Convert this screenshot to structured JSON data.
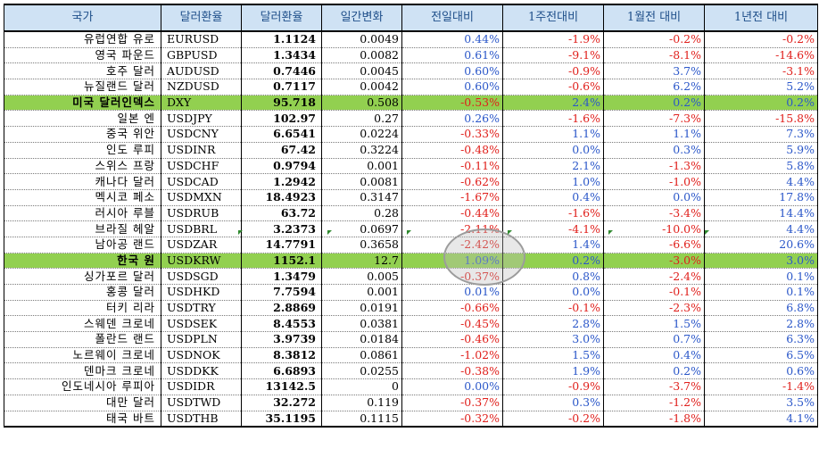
{
  "header": {
    "country": "국가",
    "code": "달러환율",
    "rate": "달러환율",
    "daily_change": "일간변화",
    "vs_prev_day": "전일대비",
    "vs_1w": "1주전대비",
    "vs_1m": "1월전 대비",
    "vs_1y": "1년전 대비"
  },
  "colors": {
    "header_bg": "#cfe2f4",
    "header_text": "#1f4f8a",
    "highlight_row": "#92d050",
    "positive": "#2b57c9",
    "negative": "#e0201c"
  },
  "rows": [
    {
      "name": "유럽연합 유로",
      "code": "EURUSD",
      "rate": "1.1124",
      "chg": "0.0049",
      "d1": "0.44%",
      "w1": "-1.9%",
      "m1": "-0.2%",
      "y1": "-0.2%"
    },
    {
      "name": "영국 파운드",
      "code": "GBPUSD",
      "rate": "1.3434",
      "chg": "0.0082",
      "d1": "0.61%",
      "w1": "-9.1%",
      "m1": "-8.1%",
      "y1": "-14.6%"
    },
    {
      "name": "호주 달러",
      "code": "AUDUSD",
      "rate": "0.7446",
      "chg": "0.0045",
      "d1": "0.60%",
      "w1": "-0.9%",
      "m1": "3.7%",
      "y1": "-3.1%"
    },
    {
      "name": "뉴질랜드 달러",
      "code": "NZDUSD",
      "rate": "0.7117",
      "chg": "0.0042",
      "d1": "0.60%",
      "w1": "-0.6%",
      "m1": "6.2%",
      "y1": "5.2%"
    },
    {
      "name": "미국 달러인덱스",
      "code": "DXY",
      "rate": "95.718",
      "chg": "0.508",
      "d1": "-0.53%",
      "w1": "2.4%",
      "m1": "0.2%",
      "y1": "0.2%",
      "highlight": true
    },
    {
      "name": "일본 엔",
      "code": "USDJPY",
      "rate": "102.97",
      "chg": "0.27",
      "d1": "0.26%",
      "w1": "-1.6%",
      "m1": "-7.3%",
      "y1": "-15.8%"
    },
    {
      "name": "중국 위안",
      "code": "USDCNY",
      "rate": "6.6541",
      "chg": "0.0224",
      "d1": "-0.33%",
      "w1": "1.1%",
      "m1": "1.1%",
      "y1": "7.3%"
    },
    {
      "name": "인도 루피",
      "code": "USDINR",
      "rate": "67.42",
      "chg": "0.3224",
      "d1": "-0.48%",
      "w1": "0.0%",
      "m1": "0.3%",
      "y1": "5.9%"
    },
    {
      "name": "스위스 프랑",
      "code": "USDCHF",
      "rate": "0.9794",
      "chg": "0.001",
      "d1": "-0.11%",
      "w1": "2.1%",
      "m1": "-1.3%",
      "y1": "5.8%"
    },
    {
      "name": "캐나다 달러",
      "code": "USDCAD",
      "rate": "1.2942",
      "chg": "0.0081",
      "d1": "-0.62%",
      "w1": "1.0%",
      "m1": "-1.0%",
      "y1": "4.4%"
    },
    {
      "name": "멕시코 페소",
      "code": "USDMXN",
      "rate": "18.4923",
      "chg": "0.3147",
      "d1": "-1.67%",
      "w1": "0.4%",
      "m1": "0.0%",
      "y1": "17.8%"
    },
    {
      "name": "러시아 루블",
      "code": "USDRUB",
      "rate": "63.72",
      "chg": "0.28",
      "d1": "-0.44%",
      "w1": "-1.6%",
      "m1": "-3.4%",
      "y1": "14.4%"
    },
    {
      "name": "브라질 헤알",
      "code": "USDBRL",
      "rate": "3.2373",
      "chg": "0.0697",
      "d1": "-2.11%",
      "w1": "-4.1%",
      "m1": "-10.0%",
      "y1": "4.4%"
    },
    {
      "name": "남아공 랜드",
      "code": "USDZAR",
      "rate": "14.7791",
      "chg": "0.3658",
      "d1": "-2.42%",
      "w1": "1.4%",
      "m1": "-6.6%",
      "y1": "20.6%"
    },
    {
      "name": "한국 원",
      "code": "USDKRW",
      "rate": "1152.1",
      "chg": "12.7",
      "d1": "1.09%",
      "w1": "0.2%",
      "m1": "-3.0%",
      "y1": "3.0%",
      "highlight": true
    },
    {
      "name": "싱가포르 달러",
      "code": "USDSGD",
      "rate": "1.3479",
      "chg": "0.005",
      "d1": "-0.37%",
      "w1": "0.8%",
      "m1": "-2.4%",
      "y1": "0.1%"
    },
    {
      "name": "홍콩 달러",
      "code": "USDHKD",
      "rate": "7.7594",
      "chg": "0.001",
      "d1": "0.01%",
      "w1": "0.0%",
      "m1": "-0.1%",
      "y1": "0.1%"
    },
    {
      "name": "터키 리라",
      "code": "USDTRY",
      "rate": "2.8869",
      "chg": "0.0191",
      "d1": "-0.66%",
      "w1": "-0.1%",
      "m1": "-2.3%",
      "y1": "6.8%"
    },
    {
      "name": "스웨덴 크로네",
      "code": "USDSEK",
      "rate": "8.4553",
      "chg": "0.0381",
      "d1": "-0.45%",
      "w1": "2.8%",
      "m1": "1.5%",
      "y1": "2.8%"
    },
    {
      "name": "폴란드 랜드",
      "code": "USDPLN",
      "rate": "3.9739",
      "chg": "0.0184",
      "d1": "-0.46%",
      "w1": "3.0%",
      "m1": "0.7%",
      "y1": "6.3%"
    },
    {
      "name": "노르웨이 크로네",
      "code": "USDNOK",
      "rate": "8.3812",
      "chg": "0.0861",
      "d1": "-1.02%",
      "w1": "1.5%",
      "m1": "0.4%",
      "y1": "6.5%"
    },
    {
      "name": "덴마크 크로네",
      "code": "USDDKK",
      "rate": "6.6893",
      "chg": "0.0255",
      "d1": "-0.38%",
      "w1": "1.9%",
      "m1": "0.2%",
      "y1": "0.6%"
    },
    {
      "name": "인도네시아 루피아",
      "code": "USDIDR",
      "rate": "13142.5",
      "chg": "0",
      "d1": "0.00%",
      "w1": "-0.9%",
      "m1": "-3.7%",
      "y1": "-1.4%"
    },
    {
      "name": "대만 달러",
      "code": "USDTWD",
      "rate": "32.272",
      "chg": "0.119",
      "d1": "-0.37%",
      "w1": "0.3%",
      "m1": "-1.2%",
      "y1": "3.5%"
    },
    {
      "name": "태국 바트",
      "code": "USDTHB",
      "rate": "35.1195",
      "chg": "0.1115",
      "d1": "-0.32%",
      "w1": "-0.2%",
      "m1": "-1.8%",
      "y1": "4.1%"
    }
  ]
}
